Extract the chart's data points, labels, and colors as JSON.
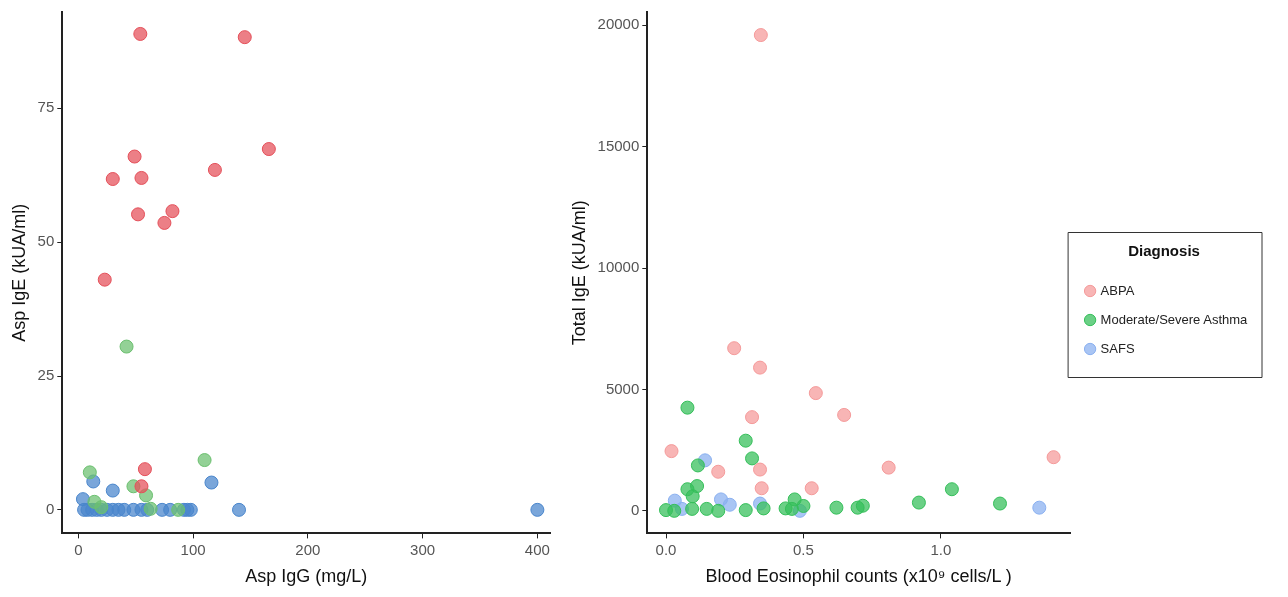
{
  "chart_data": [
    {
      "type": "scatter",
      "xlabel": "Asp IgG (mg/L)",
      "ylabel": "Asp IgE (kUA/ml)",
      "xlim": [
        -14,
        411
      ],
      "ylim": [
        -4.4,
        93
      ],
      "xticks": [
        0,
        100,
        200,
        300,
        400
      ],
      "yticks": [
        0,
        25,
        50,
        75
      ],
      "grid": false,
      "legend": false,
      "marker": "circle",
      "series": [
        {
          "color": "#e5505a",
          "x": [
            54,
            145,
            166,
            49,
            30,
            55,
            119,
            52,
            82,
            75,
            23,
            58,
            55
          ],
          "values": [
            88.9,
            88.3,
            67.4,
            66,
            61.8,
            62,
            63.5,
            55.2,
            55.8,
            53.6,
            43,
            7.6,
            4.4
          ]
        },
        {
          "color": "#6cc070",
          "x": [
            42,
            10,
            110,
            48,
            59,
            16,
            14,
            63,
            87,
            20
          ],
          "values": [
            30.5,
            7,
            9.3,
            4.4,
            2.7,
            null,
            1.5,
            0.2,
            0,
            0.5
          ]
        },
        {
          "color": "#4a86cc",
          "x": [
            13,
            116,
            30,
            4,
            140,
            400,
            5,
            8,
            12,
            16,
            20,
            25,
            30,
            35,
            40,
            48,
            55,
            60,
            73,
            80,
            92,
            95,
            98
          ],
          "values": [
            5.3,
            5.1,
            3.6,
            2,
            0,
            0,
            0,
            0,
            0,
            0,
            0,
            0,
            0,
            0,
            0,
            0,
            0,
            0,
            0,
            0,
            0,
            0,
            0
          ]
        }
      ]
    },
    {
      "type": "scatter",
      "xlabel": "Blood Eosinophil counts (x10⁹ cells/L )",
      "ylabel": "Total IgE (kUA/ml)",
      "xlim": [
        -0.068,
        1.47
      ],
      "ylim": [
        -930,
        20550
      ],
      "xticks": [
        {
          "value": 0,
          "label": "0.0"
        },
        {
          "value": 0.5,
          "label": "0.5"
        },
        {
          "value": 1,
          "label": "1.0"
        }
      ],
      "yticks": [
        0,
        5000,
        10000,
        15000,
        20000
      ],
      "grid": false,
      "legend": "right",
      "legend_title": "Diagnosis",
      "marker": "circle",
      "series": [
        {
          "name": "ABPA",
          "color": "#f59a9a",
          "x": [
            0.345,
            0.248,
            0.342,
            0.545,
            0.648,
            0.313,
            0.02,
            0.19,
            0.342,
            0.348,
            0.53,
            0.81,
            1.41
          ],
          "values": [
            19600,
            6700,
            5900,
            4850,
            3950,
            3860,
            2460,
            1610,
            1700,
            930,
            930,
            1780,
            2210
          ]
        },
        {
          "name": "Moderate/Severe Asthma",
          "color": "#35bf5a",
          "x": [
            0.078,
            0.29,
            0.313,
            0.116,
            0.113,
            0.078,
            1.04,
            0.92,
            1.215,
            0.716,
            0.697,
            0.62,
            0.468,
            0.435,
            0.5,
            0.355,
            0.29,
            0.0,
            0.03,
            0.095,
            0.148,
            0.19,
            0.097,
            0.458
          ],
          "values": [
            4250,
            2890,
            2160,
            1870,
            1020,
            890,
            890,
            340,
            300,
            210,
            130,
            130,
            470,
            100,
            200,
            100,
            30,
            30,
            0,
            80,
            80,
            0,
            600,
            80
          ]
        },
        {
          "name": "SAFS",
          "color": "#8ab0f0",
          "x": [
            0.142,
            0.032,
            0.058,
            0.158,
            0.2,
            0.232,
            0.342,
            0.487,
            1.358
          ],
          "values": [
            2080,
            420,
            80,
            null,
            470,
            250,
            300,
            0,
            130
          ]
        }
      ]
    }
  ]
}
